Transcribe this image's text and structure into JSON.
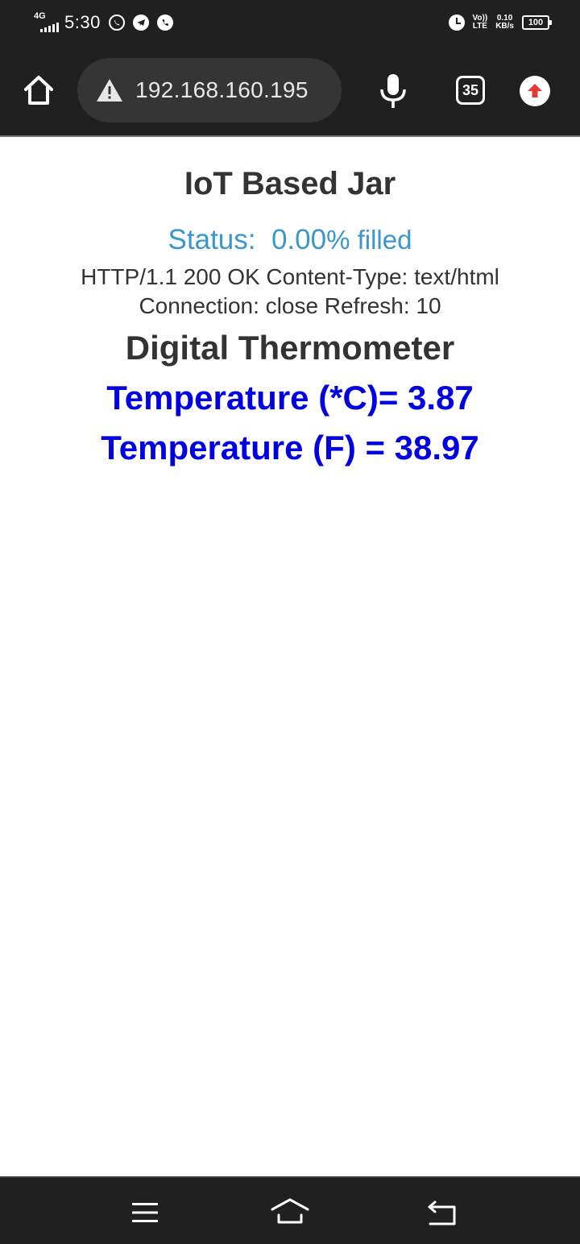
{
  "status_bar": {
    "network": "4G",
    "time": "5:30",
    "volte_top": "Vo))",
    "volte_bottom": "LTE",
    "speed_value": "0.10",
    "speed_unit": "KB/s",
    "battery": "100"
  },
  "browser": {
    "url": "192.168.160.195",
    "tab_count": "35"
  },
  "page": {
    "title": "IoT Based Jar",
    "status_label": "Status:",
    "status_value": "0.00",
    "status_suffix": "% filled",
    "http_line_1": "HTTP/1.1 200 OK Content-Type: text/html",
    "http_line_2": "Connection: close Refresh: 10",
    "thermometer_title": "Digital Thermometer",
    "temperature_c": "Temperature (*C)= 3.87",
    "temperature_f": "Temperature (F) = 38.97"
  },
  "colors": {
    "status_text": "#3a97cc",
    "temperature_text": "#0000e0",
    "heading_text": "#333333",
    "bar_background": "#202020",
    "update_arrow": "#e53935"
  },
  "icons": [
    "home-icon",
    "warning-icon",
    "mic-icon",
    "tabs-icon",
    "update-icon",
    "whatsapp-icon",
    "telegram-icon",
    "phone-icon",
    "alarm-icon",
    "menu-icon",
    "nav-home-icon",
    "back-icon"
  ]
}
